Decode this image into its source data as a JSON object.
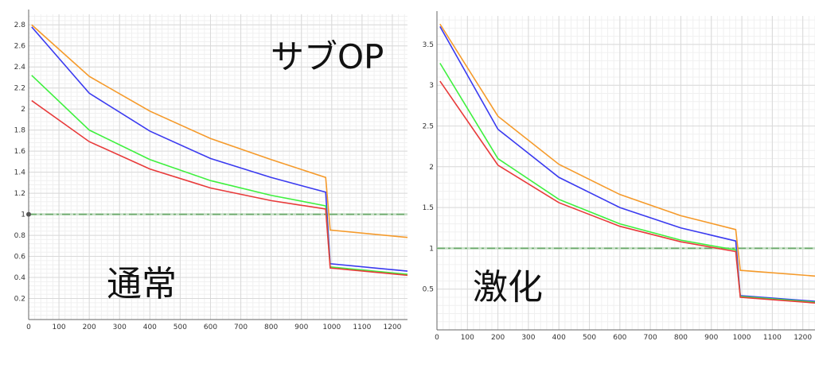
{
  "chart_data": [
    {
      "type": "line",
      "overlay_texts": [
        "サブOP",
        "通常"
      ],
      "x_ticks": [
        0,
        100,
        200,
        300,
        400,
        500,
        600,
        700,
        800,
        900,
        1000,
        1100,
        1200
      ],
      "y_ticks": [
        0.2,
        0.4,
        0.6,
        0.8,
        1,
        1.2,
        1.4,
        1.6,
        1.8,
        2,
        2.2,
        2.4,
        2.6,
        2.8
      ],
      "xlim": [
        0,
        1250
      ],
      "ylim": [
        0,
        2.9
      ],
      "grid": true,
      "reference_line": {
        "y": 1,
        "style": "dashed",
        "color": "#6aa86a"
      },
      "series": [
        {
          "color": "#f59a2a",
          "points": [
            [
              10,
              2.8
            ],
            [
              200,
              2.31
            ],
            [
              400,
              1.98
            ],
            [
              600,
              1.72
            ],
            [
              800,
              1.52
            ],
            [
              980,
              1.35
            ],
            [
              995,
              0.85
            ],
            [
              1250,
              0.78
            ]
          ]
        },
        {
          "color": "#3a3af0",
          "points": [
            [
              10,
              2.78
            ],
            [
              200,
              2.15
            ],
            [
              400,
              1.79
            ],
            [
              600,
              1.53
            ],
            [
              800,
              1.35
            ],
            [
              980,
              1.21
            ],
            [
              995,
              0.53
            ],
            [
              1250,
              0.46
            ]
          ]
        },
        {
          "color": "#3ef03e",
          "points": [
            [
              10,
              2.32
            ],
            [
              200,
              1.8
            ],
            [
              400,
              1.52
            ],
            [
              600,
              1.32
            ],
            [
              800,
              1.18
            ],
            [
              980,
              1.08
            ],
            [
              995,
              0.5
            ],
            [
              1250,
              0.43
            ]
          ]
        },
        {
          "color": "#e83a3a",
          "points": [
            [
              10,
              2.08
            ],
            [
              200,
              1.69
            ],
            [
              400,
              1.43
            ],
            [
              600,
              1.25
            ],
            [
              800,
              1.13
            ],
            [
              980,
              1.05
            ],
            [
              995,
              0.49
            ],
            [
              1250,
              0.42
            ]
          ]
        }
      ]
    },
    {
      "type": "line",
      "overlay_texts": [
        "激化"
      ],
      "x_ticks": [
        0,
        100,
        200,
        300,
        400,
        500,
        600,
        700,
        800,
        900,
        1000,
        1100,
        1200
      ],
      "y_ticks": [
        0.5,
        1,
        1.5,
        2,
        2.5,
        3,
        3.5
      ],
      "xlim": [
        0,
        1240
      ],
      "ylim": [
        0,
        3.85
      ],
      "grid": true,
      "reference_line": {
        "y": 1,
        "style": "dashed",
        "color": "#6aa86a"
      },
      "series": [
        {
          "color": "#f59a2a",
          "points": [
            [
              10,
              3.75
            ],
            [
              200,
              2.62
            ],
            [
              400,
              2.03
            ],
            [
              600,
              1.66
            ],
            [
              800,
              1.4
            ],
            [
              980,
              1.23
            ],
            [
              995,
              0.73
            ],
            [
              1240,
              0.66
            ]
          ]
        },
        {
          "color": "#3a3af0",
          "points": [
            [
              10,
              3.72
            ],
            [
              200,
              2.46
            ],
            [
              400,
              1.87
            ],
            [
              600,
              1.5
            ],
            [
              800,
              1.25
            ],
            [
              980,
              1.09
            ],
            [
              995,
              0.42
            ],
            [
              1240,
              0.35
            ]
          ]
        },
        {
          "color": "#3ef03e",
          "points": [
            [
              10,
              3.27
            ],
            [
              200,
              2.1
            ],
            [
              400,
              1.6
            ],
            [
              600,
              1.3
            ],
            [
              800,
              1.1
            ],
            [
              980,
              0.98
            ],
            [
              995,
              0.41
            ],
            [
              1240,
              0.34
            ]
          ]
        },
        {
          "color": "#e83a3a",
          "points": [
            [
              10,
              3.05
            ],
            [
              200,
              2.02
            ],
            [
              400,
              1.56
            ],
            [
              600,
              1.27
            ],
            [
              800,
              1.08
            ],
            [
              980,
              0.96
            ],
            [
              995,
              0.4
            ],
            [
              1240,
              0.33
            ]
          ]
        }
      ]
    }
  ]
}
